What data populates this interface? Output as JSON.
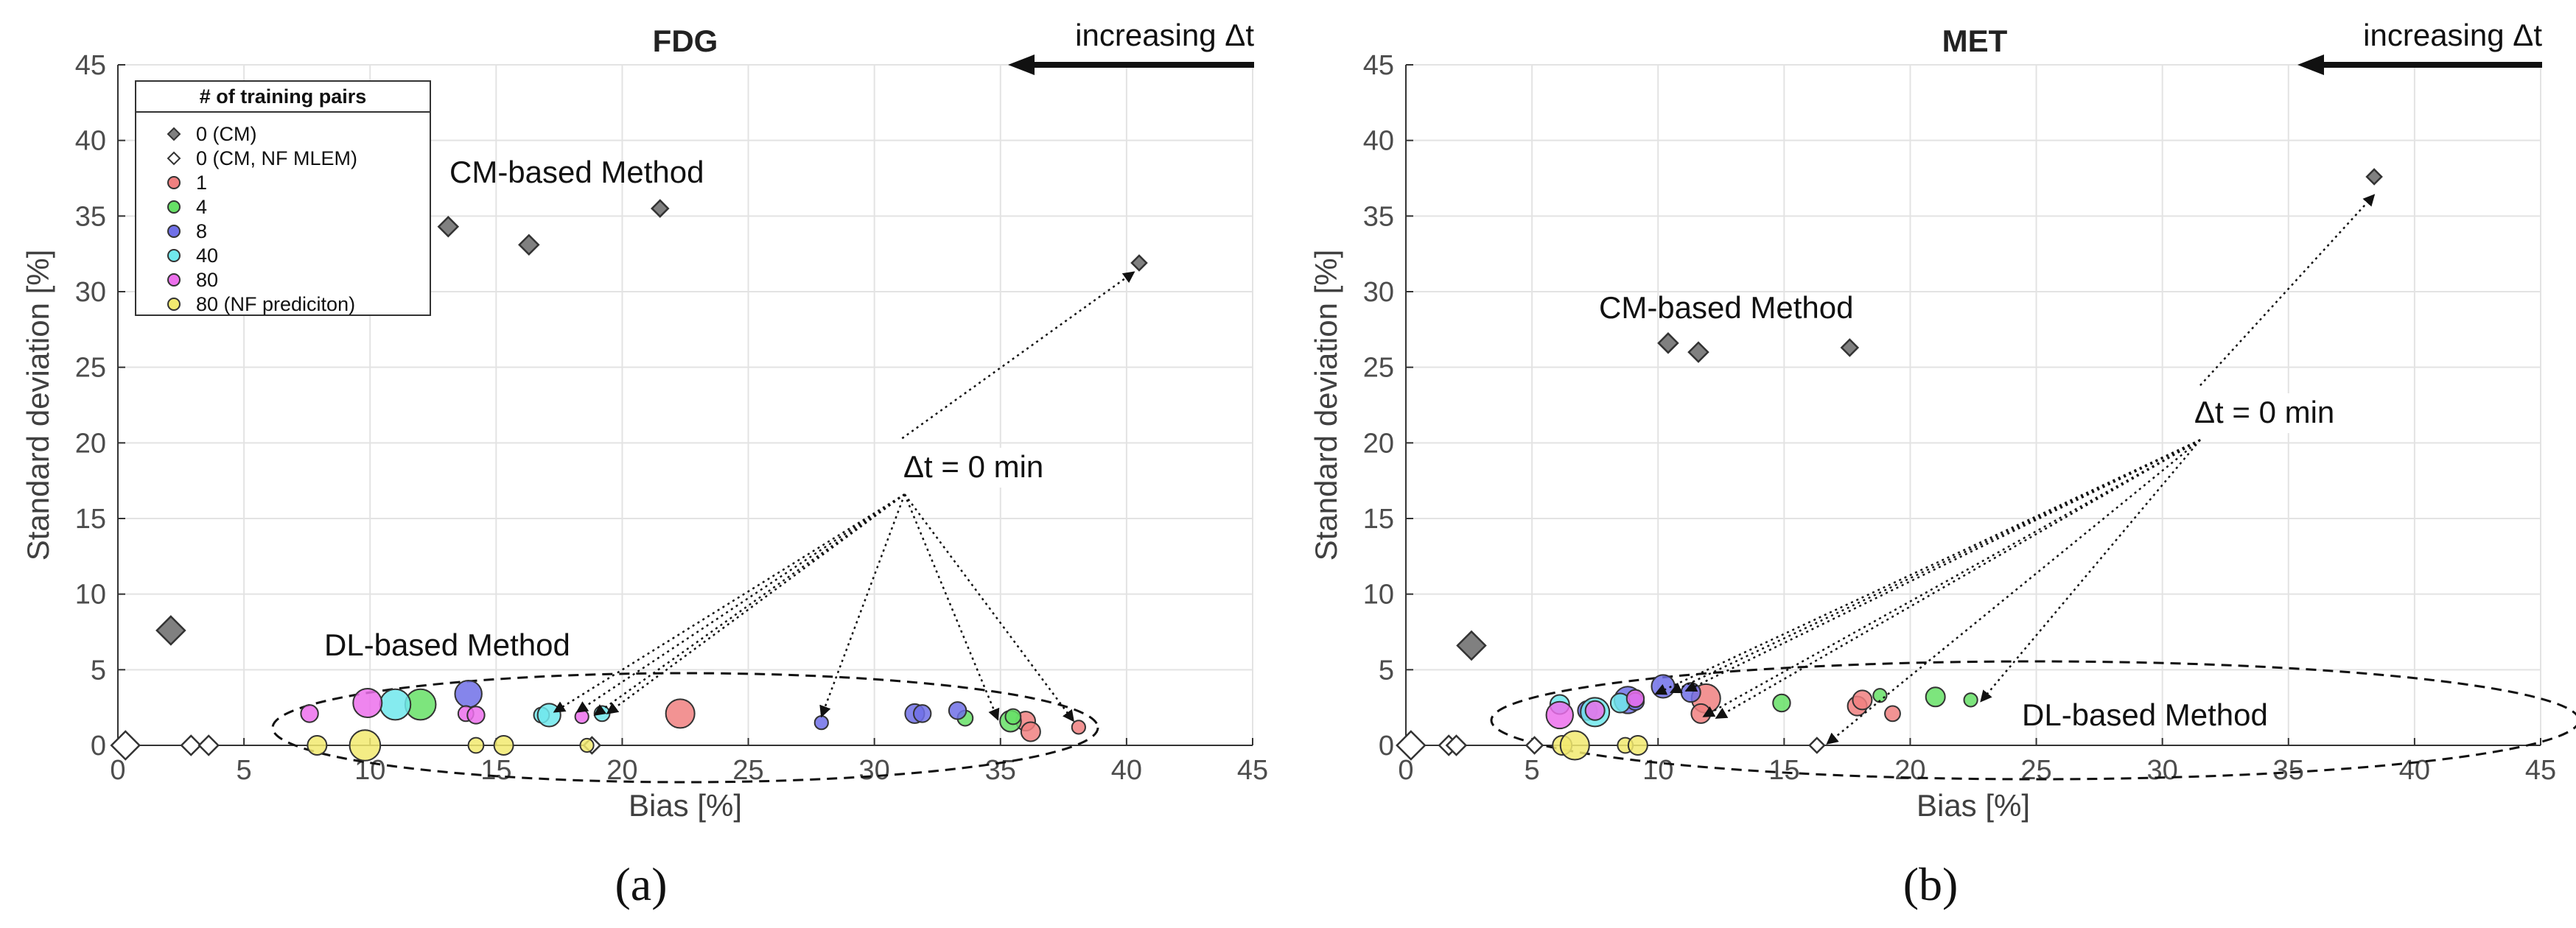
{
  "chart_data": [
    {
      "type": "scatter",
      "title": "FDG",
      "xlabel": "Bias [%]",
      "ylabel": "Standard deviation [%]",
      "xlim": [
        0,
        45
      ],
      "ylim": [
        0,
        45
      ],
      "xticks": [
        "0",
        "5",
        "10",
        "15",
        "20",
        "25",
        "30",
        "35",
        "40",
        "45"
      ],
      "yticks": [
        "0",
        "5",
        "10",
        "15",
        "20",
        "25",
        "30",
        "35",
        "40",
        "45"
      ],
      "grid": true,
      "panel_label": "(a)",
      "legend_position": "top-left",
      "legend": {
        "title": "# of training pairs",
        "entries": [
          {
            "label": "0 (CM)",
            "marker": "diamond",
            "color": "#808080"
          },
          {
            "label": "0 (CM, NF MLEM)",
            "marker": "diamond",
            "color": "#ffffff"
          },
          {
            "label": "1",
            "marker": "circle",
            "color": "#f08080"
          },
          {
            "label": "4",
            "marker": "circle",
            "color": "#66e066"
          },
          {
            "label": "8",
            "marker": "circle",
            "color": "#7070e8"
          },
          {
            "label": "40",
            "marker": "circle",
            "color": "#70e8ec"
          },
          {
            "label": "80",
            "marker": "circle",
            "color": "#ec70ec"
          },
          {
            "label": "80 (NF prediciton)",
            "marker": "circle",
            "color": "#f2ea70"
          }
        ]
      },
      "annotations": {
        "increasing": "increasing Δt",
        "cm_method": "CM-based Method",
        "dl_method": "DL-based Method",
        "delta_t_zero": "Δt = 0 min"
      },
      "series": [
        {
          "name": "0 (CM)",
          "marker": "diamond",
          "color": "#808080",
          "points": [
            [
              2.1,
              7.6,
              1.6
            ],
            [
              13.1,
              34.3,
              1
            ],
            [
              16.3,
              33.1,
              1
            ],
            [
              21.5,
              35.5,
              0.8
            ],
            [
              40.5,
              31.9,
              0.7
            ]
          ]
        },
        {
          "name": "0 (CM, NF MLEM)",
          "marker": "diamond",
          "color": "#ffffff",
          "points": [
            [
              0.3,
              0,
              1.6
            ],
            [
              2.9,
              0,
              1
            ],
            [
              3.6,
              0,
              1
            ],
            [
              18.8,
              0,
              0.8
            ]
          ]
        },
        {
          "name": "1",
          "marker": "circle",
          "color": "#f08080",
          "points": [
            [
              22.3,
              2.1,
              1.5
            ],
            [
              36,
              1.6,
              1
            ],
            [
              36.2,
              0.9,
              1
            ],
            [
              38.1,
              1.2,
              0.7
            ]
          ]
        },
        {
          "name": "4",
          "marker": "circle",
          "color": "#66e066",
          "points": [
            [
              12,
              2.7,
              1.6
            ],
            [
              33.6,
              1.8,
              0.8
            ],
            [
              35.4,
              1.6,
              1.1
            ],
            [
              35.5,
              1.9,
              0.8
            ]
          ]
        },
        {
          "name": "8",
          "marker": "circle",
          "color": "#7070e8",
          "points": [
            [
              13.9,
              3.4,
              1.4
            ],
            [
              27.9,
              1.5,
              0.7
            ],
            [
              31.6,
              2.1,
              1
            ],
            [
              31.9,
              2.1,
              0.9
            ],
            [
              33.3,
              2.3,
              0.9
            ]
          ]
        },
        {
          "name": "40",
          "marker": "circle",
          "color": "#70e8ec",
          "points": [
            [
              11,
              2.7,
              1.6
            ],
            [
              16.8,
              2,
              0.8
            ],
            [
              17.1,
              2,
              1.2
            ],
            [
              19.2,
              2.1,
              0.8
            ]
          ]
        },
        {
          "name": "80",
          "marker": "circle",
          "color": "#ec70ec",
          "points": [
            [
              7.6,
              2.1,
              0.9
            ],
            [
              9.9,
              2.8,
              1.5
            ],
            [
              13.8,
              2.1,
              0.8
            ],
            [
              14.2,
              2,
              0.9
            ],
            [
              18.4,
              1.9,
              0.7
            ]
          ]
        },
        {
          "name": "80 (NF prediciton)",
          "marker": "circle",
          "color": "#f2ea70",
          "points": [
            [
              7.9,
              0,
              1
            ],
            [
              9.8,
              0,
              1.6
            ],
            [
              14.2,
              0,
              0.8
            ],
            [
              15.3,
              0,
              1
            ],
            [
              18.6,
              0,
              0.7
            ]
          ]
        }
      ],
      "arrows": {
        "origin": [
          31.2,
          16.6
        ],
        "up_target": [
          40.3,
          31.3
        ],
        "up_start": [
          31.1,
          20.3
        ],
        "targets": [
          [
            17.3,
            2.2
          ],
          [
            18.2,
            2.2
          ],
          [
            18.9,
            2
          ],
          [
            19.4,
            2.1
          ],
          [
            27.9,
            1.9
          ],
          [
            34.9,
            1.7
          ],
          [
            37.9,
            1.6
          ]
        ]
      }
    },
    {
      "type": "scatter",
      "title": "MET",
      "xlabel": "Bias [%]",
      "ylabel": "Standard deviation [%]",
      "xlim": [
        0,
        45
      ],
      "ylim": [
        0,
        45
      ],
      "xticks": [
        "0",
        "5",
        "10",
        "15",
        "20",
        "25",
        "30",
        "35",
        "40",
        "45"
      ],
      "yticks": [
        "0",
        "5",
        "10",
        "15",
        "20",
        "25",
        "30",
        "35",
        "40",
        "45"
      ],
      "grid": true,
      "panel_label": "(b)",
      "annotations": {
        "increasing": "increasing Δt",
        "cm_method": "CM-based Method",
        "dl_method": "DL-based Method",
        "delta_t_zero": "Δt = 0 min"
      },
      "series": [
        {
          "name": "0 (CM)",
          "marker": "diamond",
          "color": "#808080",
          "points": [
            [
              2.6,
              6.6,
              1.6
            ],
            [
              10.4,
              26.6,
              1
            ],
            [
              11.6,
              26,
              1
            ],
            [
              17.6,
              26.3,
              0.8
            ],
            [
              38.4,
              37.6,
              0.7
            ]
          ]
        },
        {
          "name": "0 (CM, NF MLEM)",
          "marker": "diamond",
          "color": "#ffffff",
          "points": [
            [
              0.2,
              0,
              1.6
            ],
            [
              1.7,
              0,
              1
            ],
            [
              2,
              0,
              1
            ],
            [
              5.1,
              0,
              0.8
            ],
            [
              16.3,
              0,
              0.7
            ]
          ]
        },
        {
          "name": "1",
          "marker": "circle",
          "color": "#f08080",
          "points": [
            [
              11.9,
              3.1,
              1.5
            ],
            [
              11.7,
              2.1,
              1
            ],
            [
              17.9,
              2.6,
              1
            ],
            [
              18.1,
              3,
              1
            ],
            [
              19.3,
              2.1,
              0.8
            ]
          ]
        },
        {
          "name": "4",
          "marker": "circle",
          "color": "#66e066",
          "points": [
            [
              14.9,
              2.8,
              0.9
            ],
            [
              18.8,
              3.3,
              0.7
            ],
            [
              21,
              3.2,
              1
            ],
            [
              22.4,
              3,
              0.7
            ]
          ]
        },
        {
          "name": "8",
          "marker": "circle",
          "color": "#7070e8",
          "points": [
            [
              7.2,
              2.3,
              1
            ],
            [
              8.8,
              3,
              1.4
            ],
            [
              9.1,
              2.9,
              0.9
            ],
            [
              10.2,
              3.9,
              1.2
            ],
            [
              11.3,
              3.5,
              1
            ]
          ]
        },
        {
          "name": "40",
          "marker": "circle",
          "color": "#70e8ec",
          "points": [
            [
              6.1,
              2.7,
              1
            ],
            [
              7.5,
              2.2,
              1.5
            ],
            [
              8.5,
              2.8,
              1
            ]
          ]
        },
        {
          "name": "80",
          "marker": "circle",
          "color": "#ec70ec",
          "points": [
            [
              6.1,
              2,
              1.4
            ],
            [
              7.5,
              2.3,
              1
            ],
            [
              9.1,
              3.1,
              0.9
            ]
          ]
        },
        {
          "name": "80 (NF prediciton)",
          "marker": "circle",
          "color": "#f2ea70",
          "points": [
            [
              6.2,
              0,
              1
            ],
            [
              6.7,
              0,
              1.5
            ],
            [
              8.7,
              0,
              0.8
            ],
            [
              9.2,
              0,
              1
            ]
          ]
        }
      ],
      "arrows": {
        "origin": [
          31.5,
          20.2
        ],
        "up_target": [
          38.4,
          36.4
        ],
        "up_start": [
          31.5,
          23.8
        ],
        "targets": [
          [
            9.9,
            3.4
          ],
          [
            10.5,
            3.5
          ],
          [
            11.1,
            3.6
          ],
          [
            11.8,
            1.9
          ],
          [
            12.3,
            1.8
          ],
          [
            16.7,
            0.1
          ],
          [
            22.8,
            2.9
          ]
        ]
      }
    }
  ]
}
